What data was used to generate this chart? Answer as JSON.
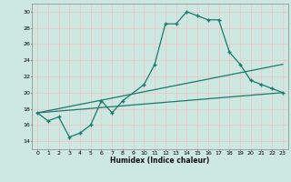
{
  "title": "",
  "xlabel": "Humidex (Indice chaleur)",
  "ylabel": "",
  "xlim": [
    -0.5,
    23.5
  ],
  "ylim": [
    13,
    31
  ],
  "yticks": [
    14,
    16,
    18,
    20,
    22,
    24,
    26,
    28,
    30
  ],
  "xticks": [
    0,
    1,
    2,
    3,
    4,
    5,
    6,
    7,
    8,
    9,
    10,
    11,
    12,
    13,
    14,
    15,
    16,
    17,
    18,
    19,
    20,
    21,
    22,
    23
  ],
  "bg_color": "#cce8e0",
  "grid_color": "#f5c0c0",
  "line_color": "#1a7a6e",
  "curve_x": [
    0,
    1,
    2,
    3,
    4,
    5,
    6,
    7,
    8,
    10,
    11,
    12,
    13,
    14,
    15,
    16,
    17,
    18,
    19,
    20,
    21,
    22,
    23
  ],
  "curve_y": [
    17.5,
    16.5,
    17.0,
    14.5,
    15.0,
    16.0,
    19.0,
    17.5,
    19.0,
    21.0,
    23.5,
    28.5,
    28.5,
    30.0,
    29.5,
    29.0,
    29.0,
    25.0,
    23.5,
    21.5,
    21.0,
    20.5,
    20.0
  ],
  "line1_x": [
    0,
    23
  ],
  "line1_y": [
    17.5,
    23.5
  ],
  "line2_x": [
    0,
    23
  ],
  "line2_y": [
    17.5,
    20.0
  ],
  "marker": "+",
  "markersize": 3,
  "linewidth": 0.9
}
